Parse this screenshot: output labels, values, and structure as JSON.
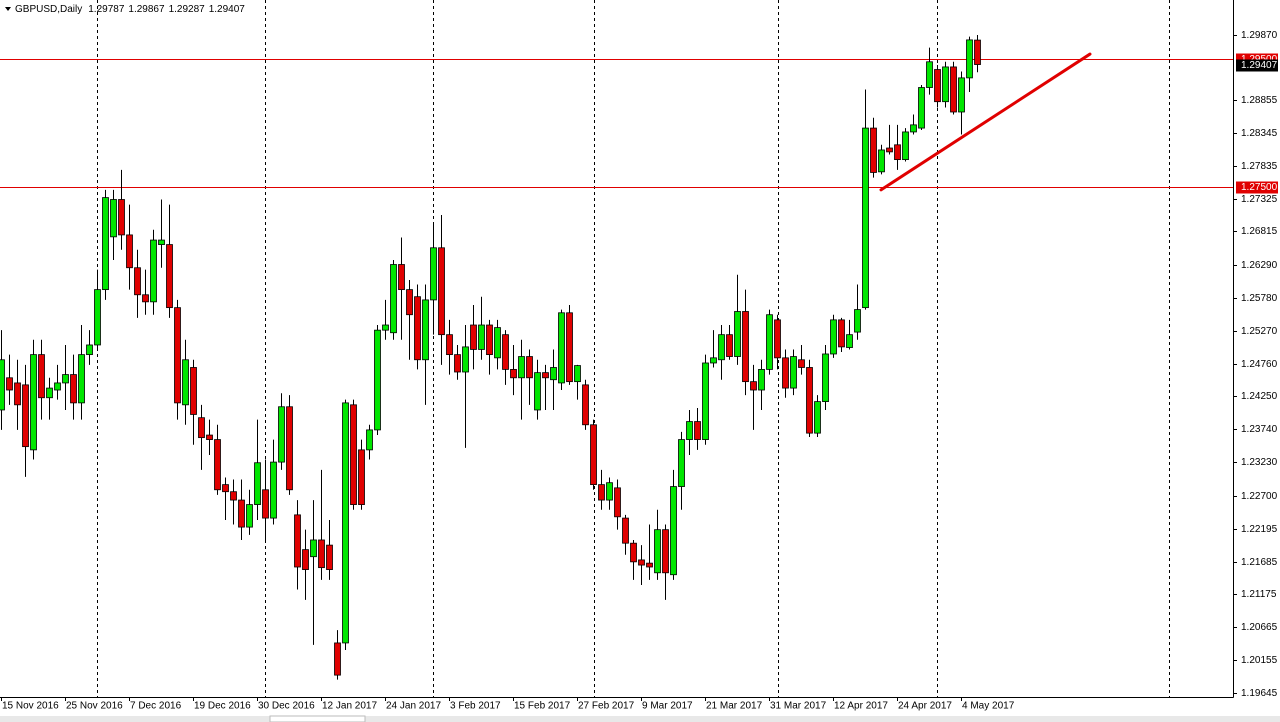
{
  "chart_data": {
    "type": "candlestick",
    "symbol": "GBPUSD,Daily",
    "up_color": "#00e600",
    "down_color": "#e00000",
    "line_color": "#e00000",
    "ylim": [
      1.1958,
      1.3041
    ],
    "yticks": [
      {
        "value": 1.2987,
        "label": "1.29870"
      },
      1.28855,
      1.28345,
      1.27835,
      1.27325,
      1.26815,
      {
        "value": 1.2629,
        "label": "1.26290"
      },
      {
        "value": 1.2578,
        "label": "1.25780"
      },
      {
        "value": 1.2527,
        "label": "1.25270"
      },
      {
        "value": 1.2476,
        "label": "1.24760"
      },
      {
        "value": 1.2425,
        "label": "1.24250"
      },
      {
        "value": 1.2374,
        "label": "1.23740"
      },
      {
        "value": 1.2323,
        "label": "1.23230"
      },
      {
        "value": 1.227,
        "label": "1.22700"
      },
      1.22195,
      1.21685,
      1.21175,
      1.20665,
      1.20155,
      1.19645
    ],
    "hlines": [
      {
        "value": 1.295,
        "label": "1.29500"
      },
      {
        "value": 1.275,
        "label": "1.27500"
      }
    ],
    "trendline": {
      "y": [
        1.2746,
        1.2957
      ]
    },
    "categories": [
      "15 Nov 2016",
      null,
      null,
      null,
      null,
      null,
      null,
      null,
      "25 Nov 2016",
      null,
      null,
      null,
      null,
      null,
      null,
      null,
      "7 Dec 2016",
      null,
      null,
      null,
      null,
      null,
      null,
      null,
      "19 Dec 2016",
      null,
      null,
      null,
      null,
      null,
      null,
      null,
      "30 Dec 2016",
      null,
      null,
      null,
      null,
      null,
      null,
      null,
      "12 Jan 2017",
      null,
      null,
      null,
      null,
      null,
      null,
      null,
      "24 Jan 2017",
      null,
      null,
      null,
      null,
      null,
      null,
      null,
      "3 Feb 2017",
      null,
      null,
      null,
      null,
      null,
      null,
      null,
      "15 Feb 2017",
      null,
      null,
      null,
      null,
      null,
      null,
      null,
      "27 Feb 2017",
      null,
      null,
      null,
      null,
      null,
      null,
      null,
      "9 Mar 2017",
      null,
      null,
      null,
      null,
      null,
      null,
      null,
      "21 Mar 2017",
      null,
      null,
      null,
      null,
      null,
      null,
      null,
      "31 Mar 2017",
      null,
      null,
      null,
      null,
      null,
      null,
      null,
      "12 Apr 2017",
      null,
      null,
      null,
      null,
      null,
      null,
      null,
      "24 Apr 2017",
      null,
      null,
      null,
      null,
      null,
      null,
      null,
      "4 May 2017",
      null,
      null
    ],
    "open": [
      1.2404,
      1.2454,
      1.2446,
      1.2443,
      1.2342,
      1.249,
      1.2423,
      1.2435,
      1.2446,
      1.2459,
      1.2415,
      1.249,
      1.2505,
      1.2591,
      1.2673,
      1.2731,
      1.2676,
      1.2625,
      1.2583,
      1.2572,
      1.2661,
      1.2661,
      1.2563,
      1.2412,
      1.247,
      1.2392,
      1.2365,
      1.2358,
      1.2288,
      1.2277,
      1.2264,
      1.2222,
      1.2257,
      1.228,
      1.2236,
      1.2323,
      1.2409,
      1.2241,
      1.2187,
      1.2176,
      1.2202,
      1.2194,
      1.2042,
      1.2042,
      1.2412,
      1.2342,
      1.2342,
      1.2373,
      1.2528,
      1.2524,
      1.263,
      1.2591,
      1.258,
      1.2482,
      1.2575,
      1.2656,
      1.2521,
      1.249,
      1.2463,
      1.2536,
      1.2498,
      1.2536,
      1.2485,
      1.2521,
      1.2467,
      1.2454,
      1.2487,
      1.2404,
      1.2462,
      1.2451,
      1.2446,
      1.2555,
      1.2448,
      1.2443,
      1.2381,
      1.2288,
      1.2264,
      1.2283,
      1.2236,
      1.2197,
      1.2171,
      1.2166,
      1.2151,
      1.2218,
      1.2148,
      1.2285,
      1.2358,
      1.2386,
      1.2358,
      1.2477,
      1.2482,
      1.2521,
      1.2487,
      1.2557,
      1.2448,
      1.2435,
      1.2467,
      1.2544,
      1.2485,
      1.2438,
      1.2482,
      1.247,
      1.2368,
      1.2417,
      1.2491,
      1.2544,
      1.2501,
      1.2525,
      1.2563,
      1.2842,
      1.2774,
      1.2811,
      1.2816,
      1.2793,
      1.2836,
      1.2842,
      1.2905,
      1.2933,
      1.2883,
      1.2937,
      1.2867,
      1.292,
      1.29787
    ],
    "high": [
      1.2528,
      1.249,
      1.2482,
      1.2474,
      1.2513,
      1.2513,
      1.2454,
      1.2474,
      1.2505,
      1.249,
      1.2536,
      1.2528,
      1.2622,
      1.2746,
      1.2746,
      1.2777,
      1.2723,
      1.2653,
      1.2622,
      1.2684,
      1.2731,
      1.2723,
      1.2575,
      1.2513,
      1.2482,
      1.2412,
      1.2389,
      1.2381,
      1.2299,
      1.2296,
      1.2296,
      1.228,
      1.2389,
      1.2327,
      1.2358,
      1.243,
      1.2427,
      1.2264,
      1.2218,
      1.2264,
      1.2311,
      1.2233,
      1.2062,
      1.242,
      1.242,
      1.2358,
      1.2381,
      1.2536,
      1.2575,
      1.2637,
      1.2672,
      1.2606,
      1.2599,
      1.2599,
      1.2692,
      1.2707,
      1.2544,
      1.2505,
      1.2536,
      1.2567,
      1.258,
      1.2544,
      1.2544,
      1.2528,
      1.2505,
      1.2513,
      1.2498,
      1.2482,
      1.2474,
      1.2498,
      1.256,
      1.2567,
      1.2474,
      1.2451,
      1.2389,
      1.2311,
      1.2299,
      1.2296,
      1.2241,
      1.2202,
      1.2194,
      1.2226,
      1.2249,
      1.2226,
      1.2311,
      1.237,
      1.2404,
      1.2407,
      1.249,
      1.2528,
      1.2536,
      1.2536,
      1.2614,
      1.2591,
      1.2474,
      1.2482,
      1.256,
      1.2552,
      1.2498,
      1.2498,
      1.2505,
      1.2482,
      1.2427,
      1.2505,
      1.2552,
      1.2547,
      1.2544,
      1.2599,
      1.2902,
      1.2858,
      1.2816,
      1.2847,
      1.2847,
      1.2842,
      1.2863,
      1.2909,
      1.2967,
      1.294,
      1.2945,
      1.2945,
      1.293,
      1.2984,
      1.29867
    ],
    "low": [
      1.2373,
      1.2412,
      1.2373,
      1.23,
      1.2327,
      1.2389,
      1.2389,
      1.242,
      1.2404,
      1.2389,
      1.2389,
      1.2474,
      1.2498,
      1.2575,
      1.2637,
      1.2653,
      1.2591,
      1.2547,
      1.2552,
      1.2552,
      1.2625,
      1.2547,
      1.2389,
      1.2381,
      1.235,
      1.2311,
      1.2334,
      1.2272,
      1.2233,
      1.2226,
      1.2202,
      1.221,
      1.2233,
      1.2202,
      1.2226,
      1.2311,
      1.2272,
      1.2125,
      1.2109,
      1.2039,
      1.214,
      1.214,
      1.1985,
      1.2031,
      1.2249,
      1.2249,
      1.2327,
      1.2365,
      1.2513,
      1.2513,
      1.2513,
      1.2482,
      1.2467,
      1.2412,
      1.2521,
      1.2474,
      1.2459,
      1.2451,
      1.2345,
      1.2467,
      1.2482,
      1.2459,
      1.2467,
      1.2443,
      1.2427,
      1.2389,
      1.2412,
      1.2389,
      1.2404,
      1.2404,
      1.2435,
      1.2443,
      1.242,
      1.2373,
      1.228,
      1.2249,
      1.2249,
      1.2218,
      1.2179,
      1.214,
      1.2132,
      1.214,
      1.214,
      1.2109,
      1.214,
      1.2249,
      1.2334,
      1.2342,
      1.235,
      1.247,
      1.2451,
      1.2482,
      1.2474,
      1.2427,
      1.2373,
      1.2404,
      1.2459,
      1.2467,
      1.2423,
      1.2427,
      1.2459,
      1.2362,
      1.2362,
      1.2404,
      1.2485,
      1.2494,
      1.2498,
      1.2513,
      1.256,
      1.2765,
      1.277,
      1.2801,
      1.2777,
      1.279,
      1.2832,
      1.2839,
      1.2894,
      1.2874,
      1.2874,
      1.2863,
      1.2832,
      1.2898,
      1.29287
    ],
    "close": [
      1.2482,
      1.2435,
      1.2412,
      1.2347,
      1.249,
      1.2423,
      1.2438,
      1.2446,
      1.2459,
      1.2415,
      1.249,
      1.2505,
      1.2591,
      1.2734,
      1.2731,
      1.2676,
      1.2625,
      1.2583,
      1.2572,
      1.2668,
      1.2668,
      1.2563,
      1.2415,
      1.2482,
      1.2397,
      1.2361,
      1.2358,
      1.228,
      1.2277,
      1.2264,
      1.2222,
      1.2257,
      1.2322,
      1.2236,
      1.2323,
      1.2409,
      1.228,
      1.216,
      1.2156,
      1.2202,
      1.2159,
      1.2156,
      1.1992,
      1.2415,
      1.2257,
      1.2257,
      1.2373,
      1.2528,
      1.2536,
      1.263,
      1.2591,
      1.2552,
      1.2482,
      1.2575,
      1.2656,
      1.2521,
      1.249,
      1.2463,
      1.2502,
      1.2498,
      1.2536,
      1.249,
      1.2532,
      1.2467,
      1.2454,
      1.2487,
      1.2454,
      1.2462,
      1.2454,
      1.247,
      1.2555,
      1.2448,
      1.2473,
      1.2381,
      1.2288,
      1.2264,
      1.2291,
      1.2238,
      1.2197,
      1.2168,
      1.2163,
      1.216,
      1.2218,
      1.2151,
      1.2285,
      1.2358,
      1.2386,
      1.2358,
      1.2477,
      1.2485,
      1.2521,
      1.2487,
      1.2557,
      1.2448,
      1.2435,
      1.2467,
      1.2552,
      1.2485,
      1.2438,
      1.2487,
      1.247,
      1.2368,
      1.2417,
      1.2491,
      1.2544,
      1.2502,
      1.2521,
      1.256,
      1.2842,
      1.2773,
      1.2808,
      1.2805,
      1.2793,
      1.2836,
      1.2847,
      1.2905,
      1.2945,
      1.2883,
      1.2937,
      1.2867,
      1.292,
      1.2979,
      1.29407
    ]
  }
}
